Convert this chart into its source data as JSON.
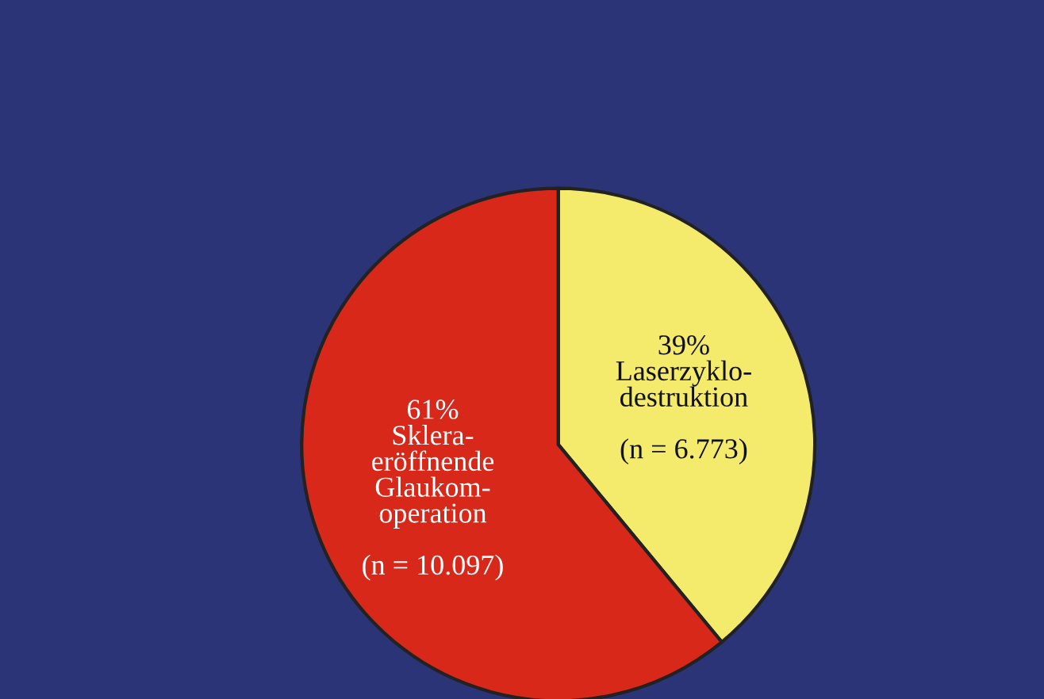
{
  "chart_data": {
    "type": "pie",
    "categories": [
      "Laserzyklo-\ndestruktion\n\n(n = 6.773)",
      "Sklera-\neröffnende\nGlaukom-\noperation\n\n(n = 10.097)"
    ],
    "values": [
      39,
      61
    ],
    "value_labels": [
      "39%",
      "61%"
    ],
    "colors": [
      "#f4ea6c",
      "#d8281a"
    ]
  }
}
